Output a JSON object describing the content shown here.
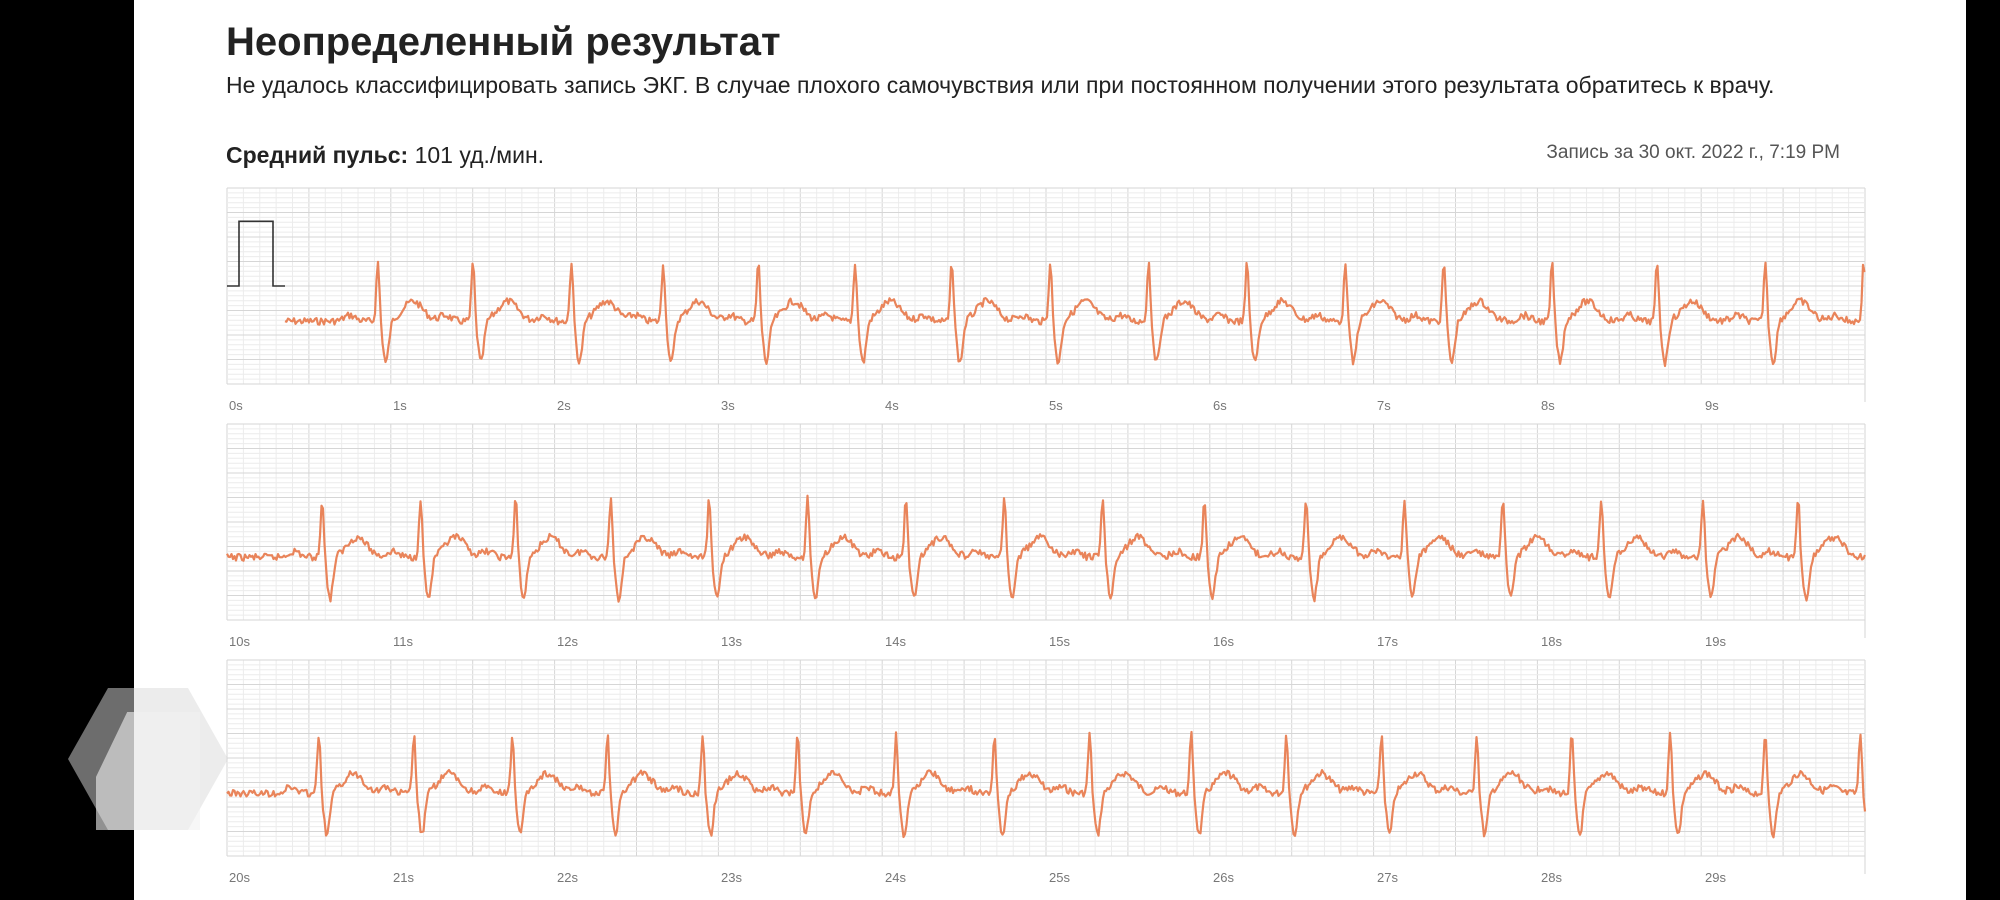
{
  "header": {
    "title": "Неопределенный результат",
    "subtitle": "Не удалось классифицировать запись ЭКГ. В случае плохого самочувствия или при постоянном получении этого результата обратитесь к врачу."
  },
  "summary": {
    "avg_pulse_label": "Средний пульс:",
    "avg_pulse_value": "101 уд./мин.",
    "recorded_at": "Запись за 30 окт. 2022 г., 7:19 PM"
  },
  "colors": {
    "trace": "#e9845a",
    "grid_minor": "#ececec",
    "grid_major": "#d6d6d6",
    "calibration": "#333333"
  },
  "chart_data": {
    "type": "line",
    "title": "",
    "xlabel": "",
    "ylabel": "",
    "grid": true,
    "strips": [
      {
        "ticks": [
          "0s",
          "1s",
          "2s",
          "3s",
          "4s",
          "5s",
          "6s",
          "7s",
          "8s",
          "9s"
        ],
        "start_s": 0,
        "end_s": 10,
        "calibration_pulse": true,
        "beats_s": [
          0.92,
          1.5,
          2.1,
          2.66,
          3.24,
          3.83,
          4.42,
          5.02,
          5.62,
          6.22,
          6.82,
          7.42,
          8.08,
          8.72,
          9.38,
          9.98
        ]
      },
      {
        "ticks": [
          "10s",
          "11s",
          "12s",
          "13s",
          "14s",
          "15s",
          "16s",
          "17s",
          "18s",
          "19s"
        ],
        "start_s": 10,
        "end_s": 20,
        "calibration_pulse": false,
        "beats_s": [
          10.58,
          11.18,
          11.76,
          12.34,
          12.94,
          13.54,
          14.14,
          14.74,
          15.34,
          15.96,
          16.58,
          17.18,
          17.78,
          18.38,
          19.0,
          19.58
        ]
      },
      {
        "ticks": [
          "20s",
          "21s",
          "22s",
          "23s",
          "24s",
          "25s",
          "26s",
          "27s",
          "28s",
          "29s"
        ],
        "start_s": 20,
        "end_s": 30,
        "calibration_pulse": false,
        "beats_s": [
          20.56,
          21.14,
          21.74,
          22.32,
          22.9,
          23.48,
          24.08,
          24.68,
          25.26,
          25.88,
          26.46,
          27.04,
          27.62,
          28.2,
          28.8,
          29.38,
          29.96
        ]
      }
    ]
  }
}
